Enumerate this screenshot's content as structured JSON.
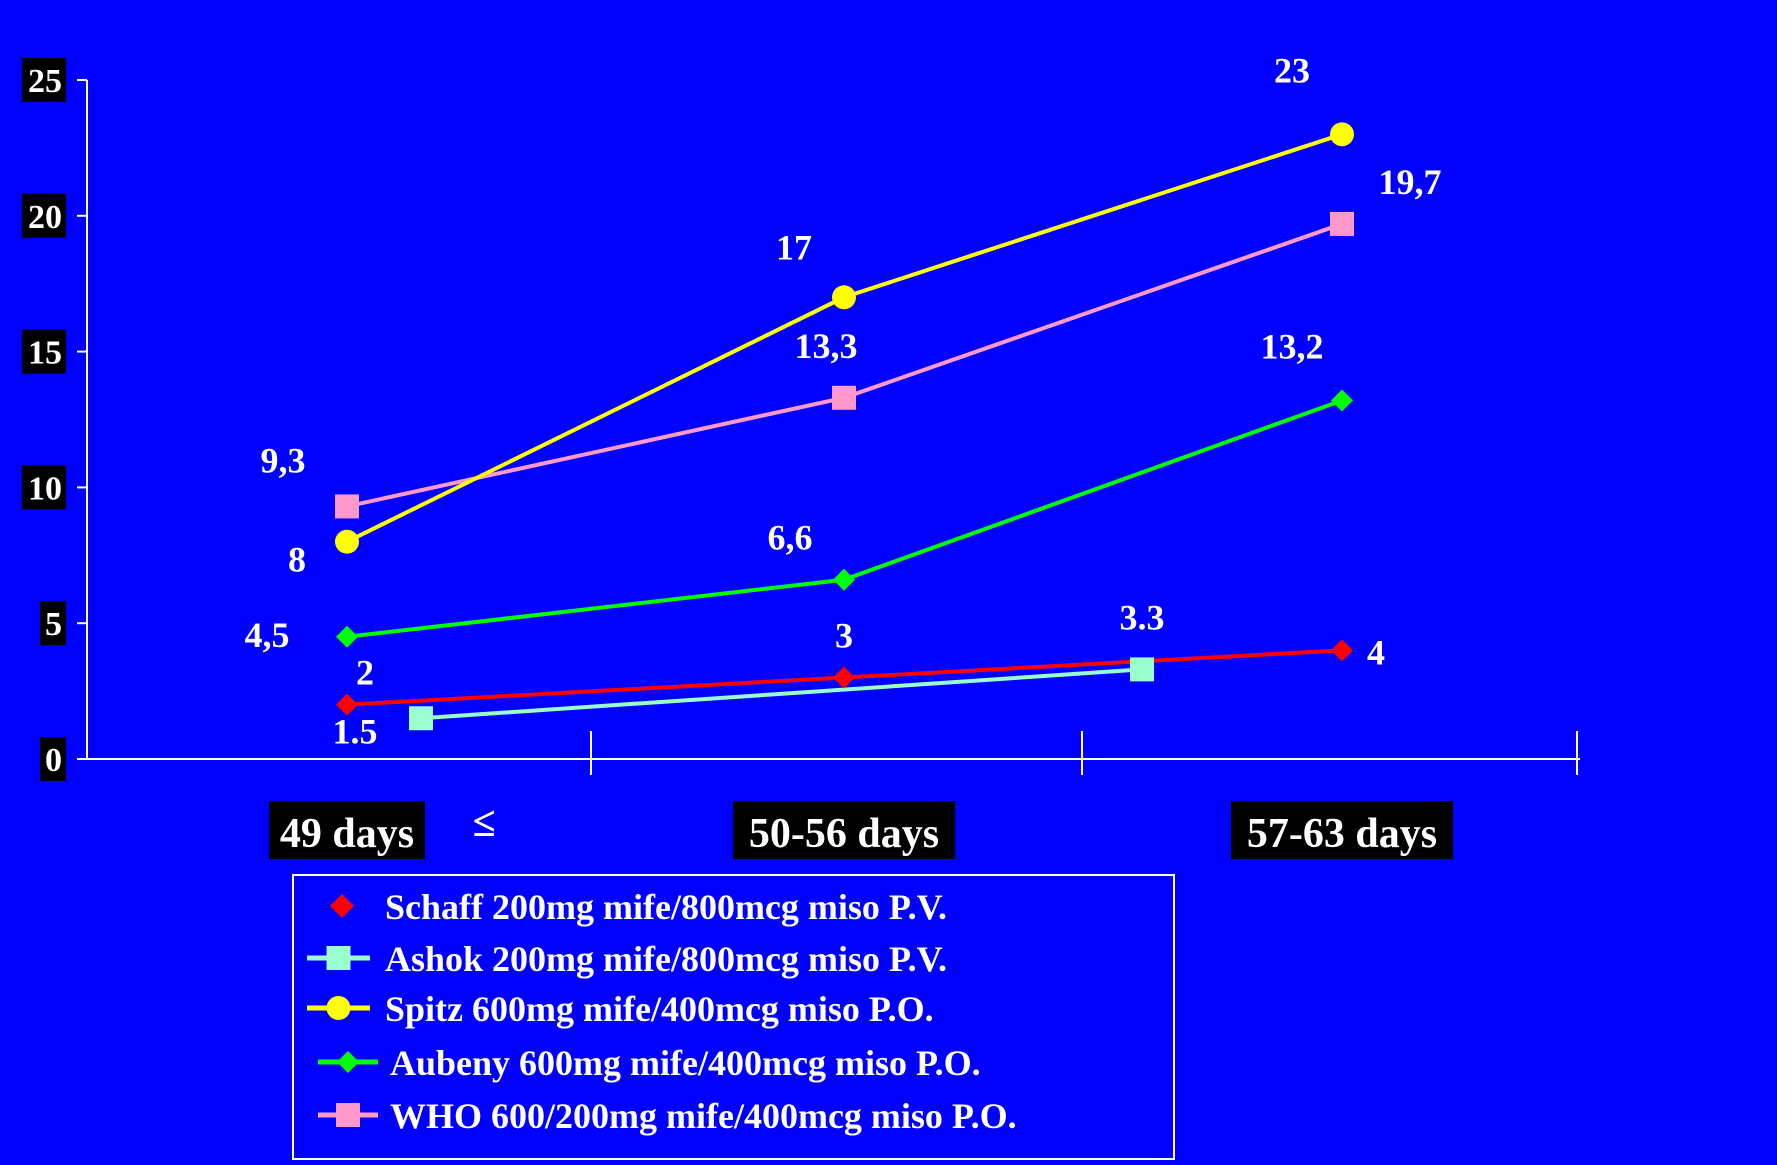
{
  "chart_data": {
    "type": "line",
    "title": "",
    "xlabel": "",
    "ylabel": "",
    "ylim": [
      0,
      25
    ],
    "yticks": [
      "0",
      "5",
      "10",
      "15",
      "20",
      "25"
    ],
    "categories": [
      "49 days",
      "50-56 days",
      "57-63 days"
    ],
    "category_prefix_symbol": "≤",
    "grid": false,
    "legend_position": "bottom",
    "series": [
      {
        "name": "Schaff 200mg mife/800mcg miso P.V.",
        "color": "#ff0000",
        "marker": "diamond",
        "points": [
          {
            "x": "49 days",
            "y": 2,
            "label": "2"
          },
          {
            "x": "50-56 days",
            "y": 3,
            "label": "3"
          },
          {
            "x": "57-63 days",
            "y": 4,
            "label": "4"
          }
        ]
      },
      {
        "name": "Ashok 200mg mife/800mcg miso P.V.",
        "color": "#99ffcc",
        "marker": "square",
        "points": [
          {
            "x": "49 days",
            "y": 1.5,
            "label": "1.5"
          },
          {
            "x": "50-56 days",
            "y": 3.3,
            "label": "3.3"
          }
        ]
      },
      {
        "name": "Spitz 600mg mife/400mcg miso P.O.",
        "color": "#ffff00",
        "marker": "circle",
        "points": [
          {
            "x": "49 days",
            "y": 8,
            "label": "8"
          },
          {
            "x": "50-56 days",
            "y": 17,
            "label": "17"
          },
          {
            "x": "57-63 days",
            "y": 23,
            "label": "23"
          }
        ]
      },
      {
        "name": "Aubeny 600mg mife/400mcg miso P.O.",
        "color": "#00ff00",
        "marker": "diamond",
        "points": [
          {
            "x": "49 days",
            "y": 4.5,
            "label": "4,5"
          },
          {
            "x": "50-56 days",
            "y": 6.6,
            "label": "6,6"
          },
          {
            "x": "57-63 days",
            "y": 13.2,
            "label": "13,2"
          }
        ]
      },
      {
        "name": "WHO 600/200mg mife/400mcg miso P.O.",
        "color": "#ff99cc",
        "marker": "square",
        "points": [
          {
            "x": "49 days",
            "y": 9.3,
            "label": "9,3"
          },
          {
            "x": "50-56 days",
            "y": 13.3,
            "label": "13,3"
          },
          {
            "x": "57-63 days",
            "y": 19.7,
            "label": "19,7"
          }
        ]
      }
    ]
  }
}
